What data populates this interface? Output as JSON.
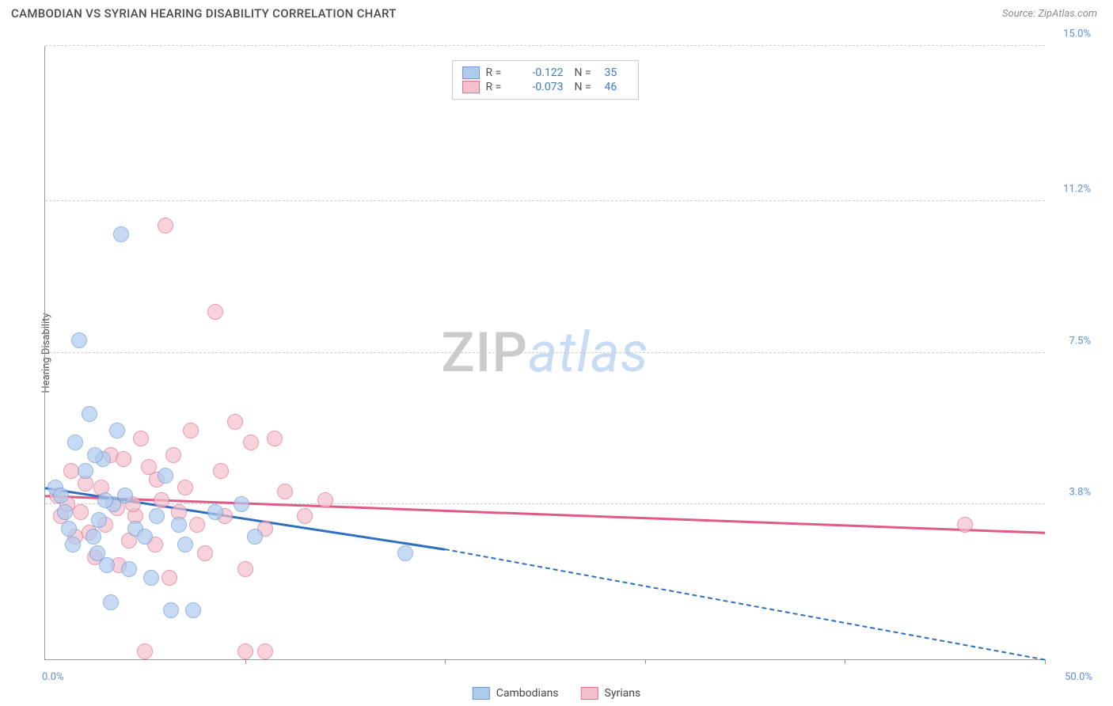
{
  "header": {
    "title": "CAMBODIAN VS SYRIAN HEARING DISABILITY CORRELATION CHART",
    "source": "Source: ZipAtlas.com"
  },
  "chart": {
    "type": "scatter",
    "ylabel": "Hearing Disability",
    "xlim": [
      0,
      50
    ],
    "ylim": [
      0,
      15
    ],
    "yticks": [
      3.8,
      7.5,
      11.2,
      15.0
    ],
    "ytick_labels": [
      "3.8%",
      "7.5%",
      "11.2%",
      "15.0%"
    ],
    "xtick_marks": [
      0,
      10,
      20,
      30,
      40,
      50
    ],
    "xleft_label": "0.0%",
    "xright_label": "50.0%",
    "background_color": "#ffffff",
    "grid_color": "#cccccc",
    "axis_color": "#999999",
    "marker_radius": 10,
    "marker_opacity": 0.7,
    "series": {
      "cambodians": {
        "label": "Cambodians",
        "fill": "#aecbee",
        "stroke": "#6a9bd8",
        "line_color": "#2f6fc0",
        "r": -0.122,
        "n": 35,
        "regression": {
          "x1": 0,
          "y1": 4.2,
          "x2_solid": 20,
          "y2_solid": 2.7,
          "x2": 50,
          "y2": 0.0
        },
        "points": [
          [
            0.5,
            4.2
          ],
          [
            0.8,
            4.0
          ],
          [
            1.0,
            3.6
          ],
          [
            1.2,
            3.2
          ],
          [
            1.4,
            2.8
          ],
          [
            1.5,
            5.3
          ],
          [
            1.7,
            7.8
          ],
          [
            2.0,
            4.6
          ],
          [
            2.2,
            6.0
          ],
          [
            2.4,
            3.0
          ],
          [
            2.6,
            2.6
          ],
          [
            2.7,
            3.4
          ],
          [
            2.9,
            4.9
          ],
          [
            3.1,
            2.3
          ],
          [
            3.4,
            3.8
          ],
          [
            3.6,
            5.6
          ],
          [
            3.8,
            10.4
          ],
          [
            4.0,
            4.0
          ],
          [
            4.2,
            2.2
          ],
          [
            4.5,
            3.2
          ],
          [
            3.3,
            1.4
          ],
          [
            5.0,
            3.0
          ],
          [
            5.3,
            2.0
          ],
          [
            5.6,
            3.5
          ],
          [
            6.0,
            4.5
          ],
          [
            6.3,
            1.2
          ],
          [
            6.7,
            3.3
          ],
          [
            7.0,
            2.8
          ],
          [
            7.4,
            1.2
          ],
          [
            8.5,
            3.6
          ],
          [
            9.8,
            3.8
          ],
          [
            10.5,
            3.0
          ],
          [
            3.0,
            3.9
          ],
          [
            2.5,
            5.0
          ],
          [
            18.0,
            2.6
          ]
        ]
      },
      "syrians": {
        "label": "Syrians",
        "fill": "#f4c0cc",
        "stroke": "#e0728f",
        "line_color": "#e05a86",
        "r": -0.073,
        "n": 46,
        "regression": {
          "x1": 0,
          "y1": 4.0,
          "x2": 50,
          "y2": 3.1
        },
        "points": [
          [
            0.6,
            4.0
          ],
          [
            0.8,
            3.5
          ],
          [
            1.1,
            3.8
          ],
          [
            1.3,
            4.6
          ],
          [
            1.5,
            3.0
          ],
          [
            1.8,
            3.6
          ],
          [
            2.0,
            4.3
          ],
          [
            2.2,
            3.1
          ],
          [
            2.5,
            2.5
          ],
          [
            2.8,
            4.2
          ],
          [
            3.0,
            3.3
          ],
          [
            3.3,
            5.0
          ],
          [
            3.6,
            3.7
          ],
          [
            3.9,
            4.9
          ],
          [
            4.2,
            2.9
          ],
          [
            4.5,
            3.5
          ],
          [
            4.8,
            5.4
          ],
          [
            5.0,
            0.2
          ],
          [
            5.2,
            4.7
          ],
          [
            5.5,
            2.8
          ],
          [
            5.8,
            3.9
          ],
          [
            6.0,
            10.6
          ],
          [
            6.4,
            5.0
          ],
          [
            6.7,
            3.6
          ],
          [
            7.0,
            4.2
          ],
          [
            7.3,
            5.6
          ],
          [
            7.6,
            3.3
          ],
          [
            8.0,
            2.6
          ],
          [
            8.5,
            8.5
          ],
          [
            9.0,
            3.5
          ],
          [
            9.5,
            5.8
          ],
          [
            10.0,
            0.2
          ],
          [
            10.3,
            5.3
          ],
          [
            10.0,
            2.2
          ],
          [
            11.0,
            3.2
          ],
          [
            11.5,
            5.4
          ],
          [
            12.0,
            4.1
          ],
          [
            11.0,
            0.2
          ],
          [
            13.0,
            3.5
          ],
          [
            14.0,
            3.9
          ],
          [
            4.4,
            3.8
          ],
          [
            5.6,
            4.4
          ],
          [
            3.7,
            2.3
          ],
          [
            6.2,
            2.0
          ],
          [
            8.8,
            4.6
          ],
          [
            46.0,
            3.3
          ]
        ]
      }
    },
    "legend_top_colors": {
      "text_val": "#3a78c9"
    },
    "legend_bottom": [
      {
        "key": "cambodians"
      },
      {
        "key": "syrians"
      }
    ],
    "watermark": {
      "zip": "ZIP",
      "atlas": "atlas"
    }
  }
}
